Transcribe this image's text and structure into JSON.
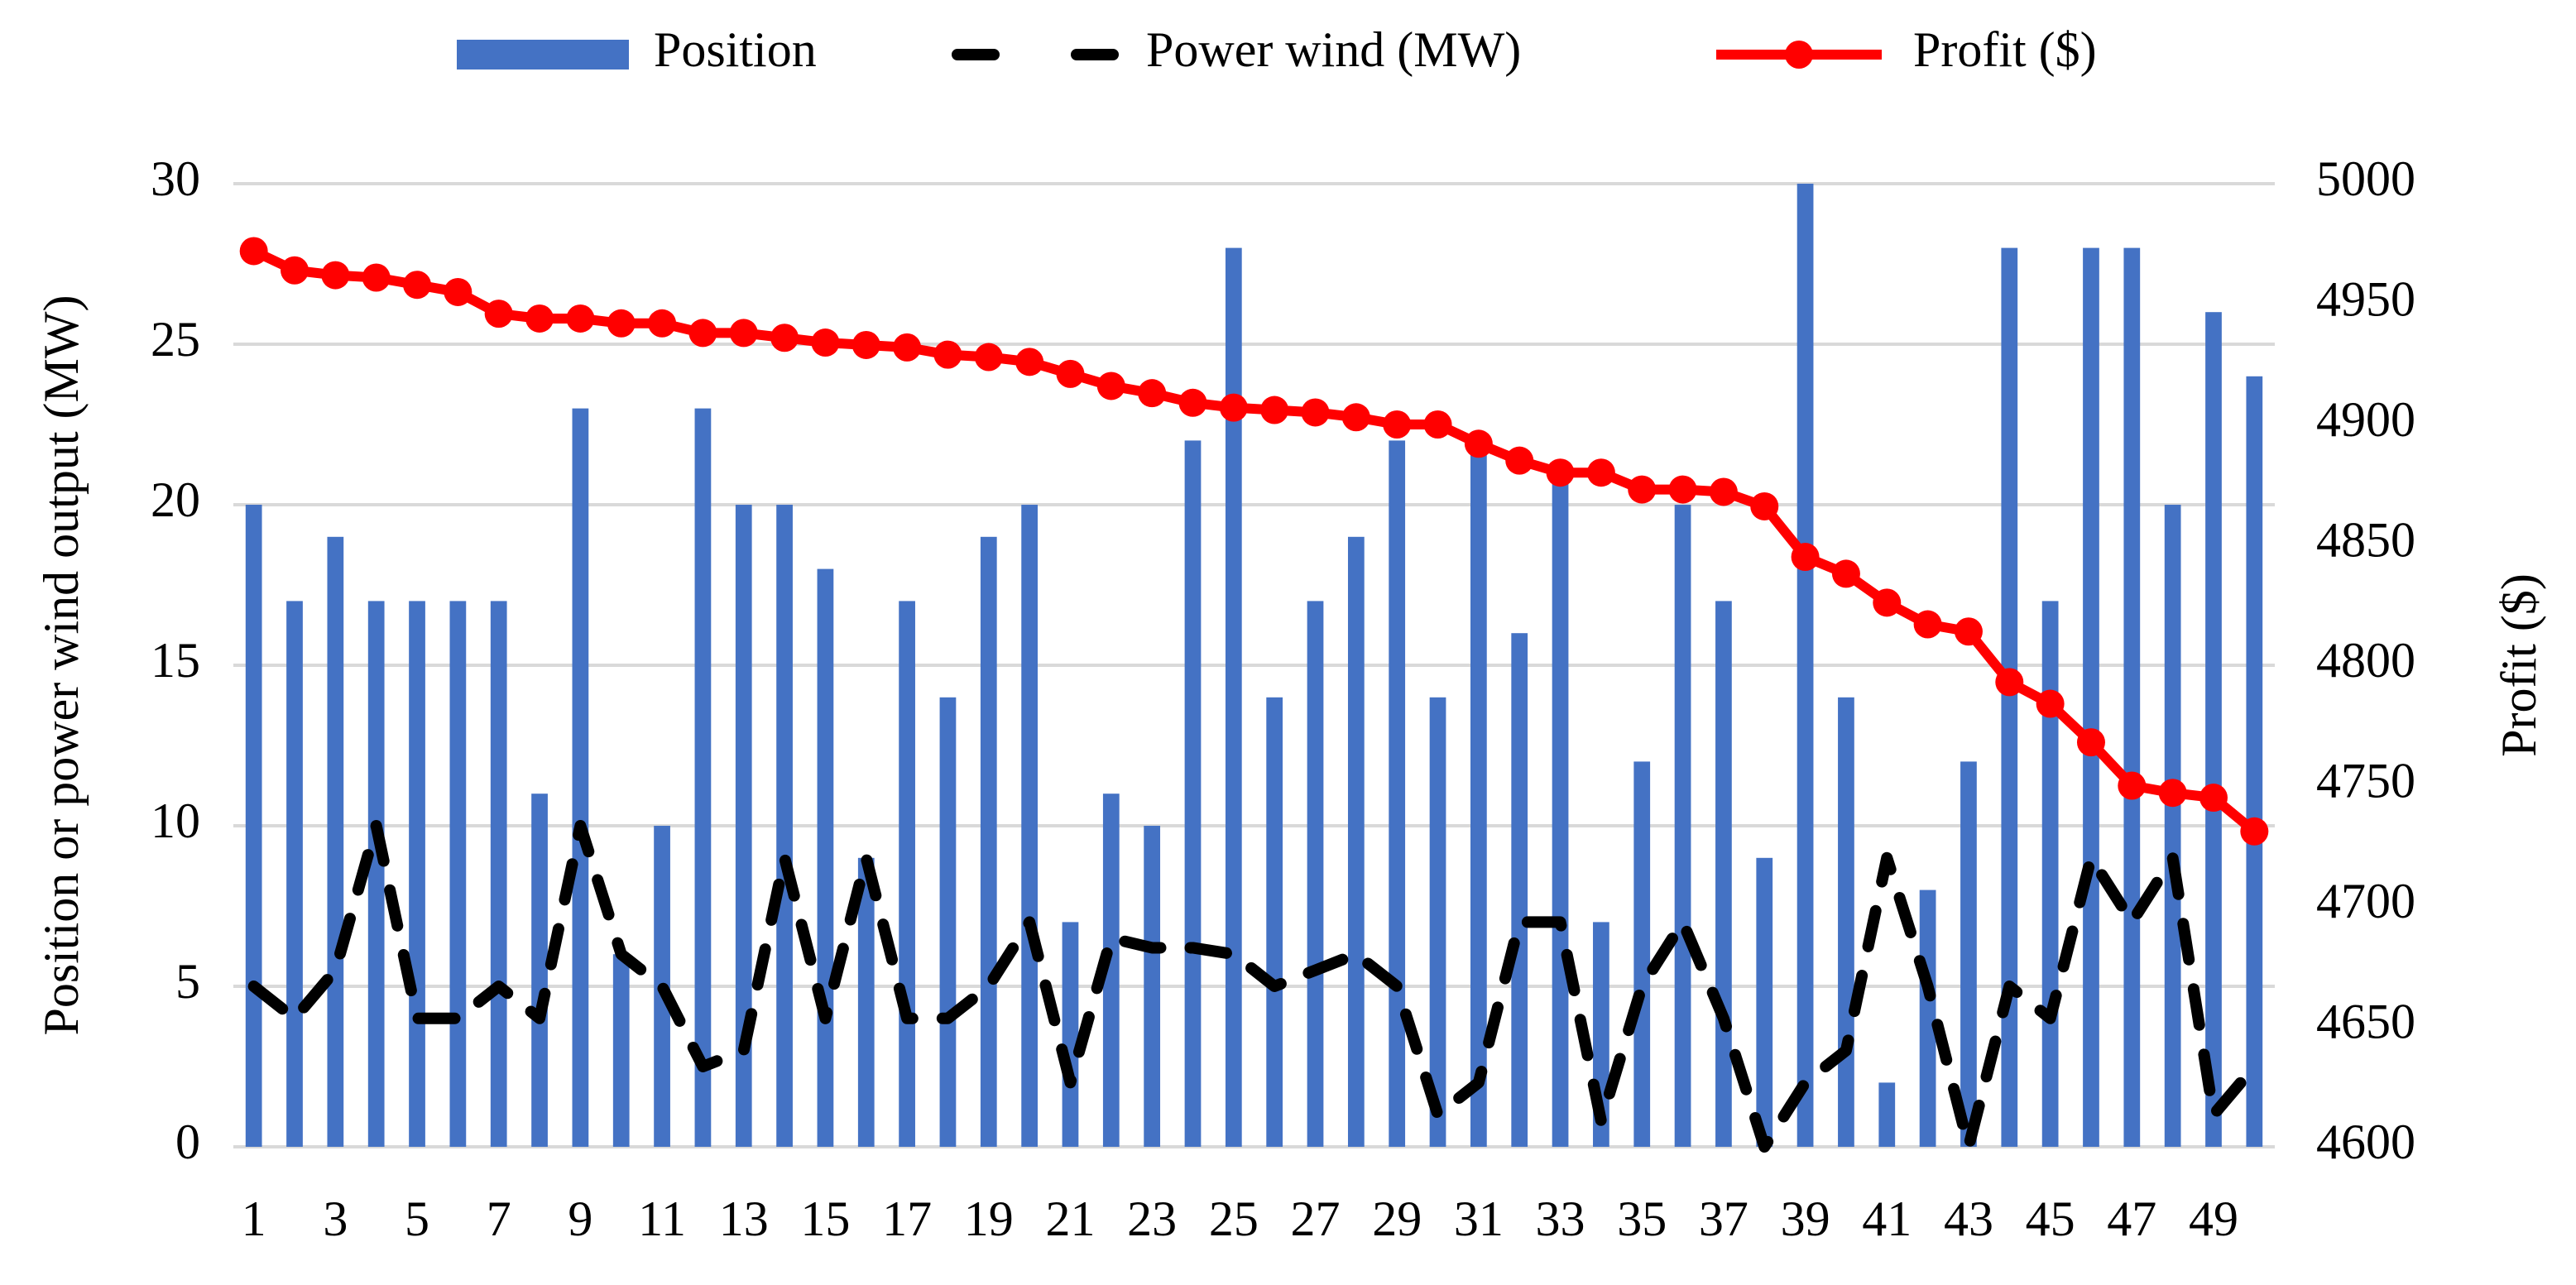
{
  "chart_data": {
    "type": "bar_line",
    "categories": [
      "1",
      null,
      "3",
      null,
      "5",
      null,
      "7",
      null,
      "9",
      null,
      "11",
      null,
      "13",
      null,
      "15",
      null,
      "17",
      null,
      "19",
      null,
      "21",
      null,
      "23",
      null,
      "25",
      null,
      "27",
      null,
      "29",
      null,
      "31",
      null,
      "33",
      null,
      "35",
      null,
      "37",
      null,
      "39",
      null,
      "41",
      null,
      "43",
      null,
      "45",
      null,
      "47",
      null,
      "49",
      null
    ],
    "y_label": "Position or power wind output (MW)",
    "y2_label": "Profit ($)",
    "ylim": [
      0,
      30
    ],
    "yticks": [
      0,
      5,
      10,
      15,
      20,
      25,
      30
    ],
    "y2lim": [
      4600,
      5000
    ],
    "y2ticks": [
      4600,
      4650,
      4700,
      4750,
      4800,
      4850,
      4900,
      4950,
      5000
    ],
    "grid": true,
    "legend": "top",
    "series": [
      {
        "name": "Position",
        "type": "bar",
        "color": "#4472c4",
        "values": [
          20,
          17,
          19,
          17,
          17,
          17,
          17,
          11,
          23,
          6,
          10,
          23,
          20,
          20,
          18,
          9,
          17,
          14,
          19,
          20,
          7,
          11,
          10,
          22,
          28,
          14,
          17,
          19,
          22,
          14,
          22,
          16,
          21,
          7,
          12,
          20,
          17,
          9,
          30,
          14,
          2,
          8,
          12,
          28,
          17,
          28,
          28,
          20,
          26,
          24
        ]
      },
      {
        "name": "Power wind (MW)",
        "type": "line",
        "style": "dashed",
        "color": "#000000",
        "values": [
          5,
          4,
          5.5,
          10,
          4,
          4,
          5,
          4,
          10,
          6,
          5,
          2.5,
          3,
          9,
          4,
          9,
          4,
          4,
          5,
          7,
          2,
          6.5,
          6.2,
          6.2,
          6,
          5,
          5.5,
          6,
          5,
          1,
          2,
          7,
          7,
          0.8,
          5,
          7,
          4,
          0,
          2,
          3,
          9,
          5,
          0,
          5,
          4,
          9,
          7,
          9,
          1,
          2.5
        ]
      },
      {
        "name": "Profit ($)",
        "type": "line",
        "style": "markers",
        "axis": "y2",
        "color": "#ff0000",
        "values": [
          4972,
          4964,
          4962,
          4961,
          4958,
          4955,
          4946,
          4944,
          4944,
          4942,
          4942,
          4938,
          4938,
          4936,
          4934,
          4933,
          4932,
          4929,
          4928,
          4926,
          4921,
          4916,
          4913,
          4909,
          4907,
          4906,
          4905,
          4903,
          4900,
          4900,
          4892,
          4885,
          4880,
          4880,
          4873,
          4873,
          4872,
          4866,
          4845,
          4838,
          4826,
          4817,
          4814,
          4793,
          4784,
          4768,
          4750,
          4747,
          4745,
          4731
        ]
      }
    ]
  }
}
